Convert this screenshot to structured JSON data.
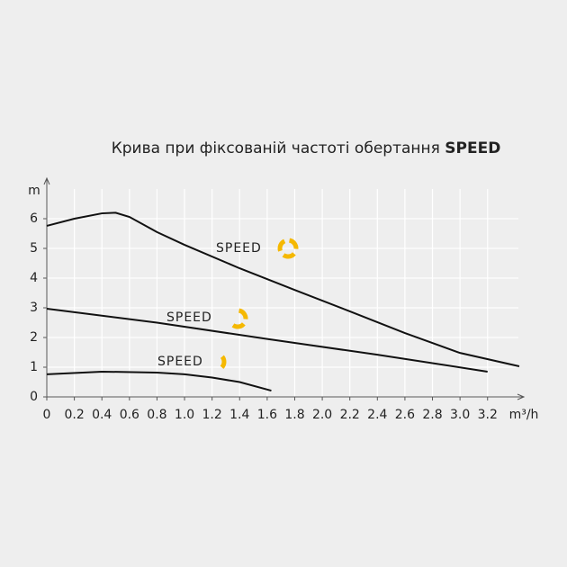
{
  "chart_data": {
    "type": "line",
    "title": "Крива при фіксованій частоті обертання",
    "title_bold": "SPEED",
    "y_label": "m",
    "x_label": "m³/h",
    "xlim": [
      0,
      3.45
    ],
    "ylim": [
      0,
      7
    ],
    "xticks": [
      0,
      0.2,
      0.4,
      0.6,
      0.8,
      {
        "value": 1.0,
        "label": "1.0"
      },
      1.2,
      1.4,
      1.6,
      1.8,
      {
        "value": 2.0,
        "label": "2.0"
      },
      2.2,
      2.4,
      2.6,
      2.8,
      {
        "value": 3.0,
        "label": "3.0"
      },
      3.2
    ],
    "yticks": [
      0,
      1,
      2,
      3,
      4,
      5,
      6
    ],
    "grid": true,
    "series": [
      {
        "name": "SPEED",
        "color": "#111111",
        "x": [
          0,
          0.2,
          0.4,
          0.5,
          0.6,
          0.8,
          1.0,
          1.4,
          1.8,
          2.2,
          2.6,
          3.0,
          3.43
        ],
        "values": [
          5.76,
          6.0,
          6.18,
          6.2,
          6.06,
          5.55,
          5.12,
          4.33,
          3.6,
          2.88,
          2.15,
          1.48,
          1.03
        ]
      },
      {
        "name": "SPEED",
        "color": "#111111",
        "x": [
          0,
          0.8,
          1.6,
          2.4,
          3.2
        ],
        "values": [
          2.97,
          2.5,
          1.95,
          1.42,
          0.85
        ]
      },
      {
        "name": "SPEED",
        "color": "#111111",
        "x": [
          0,
          0.4,
          0.8,
          1.0,
          1.2,
          1.4,
          1.63
        ],
        "values": [
          0.76,
          0.85,
          0.82,
          0.76,
          0.65,
          0.5,
          0.21
        ]
      }
    ]
  }
}
